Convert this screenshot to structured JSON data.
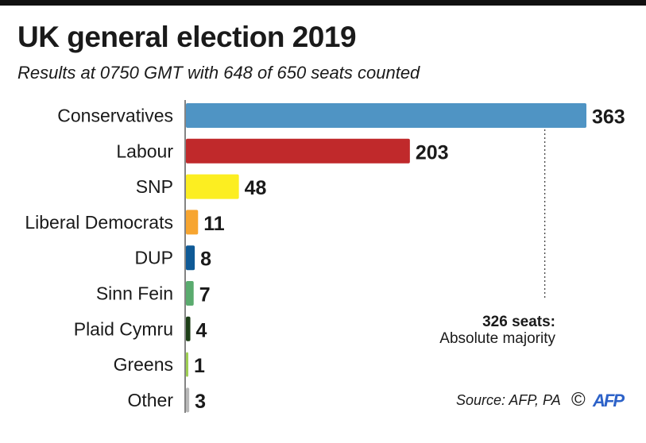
{
  "header": {
    "title": "UK general election 2019",
    "subtitle": "Results at 0750 GMT with 648 of 650 seats counted"
  },
  "chart_data": {
    "type": "bar",
    "orientation": "horizontal",
    "title": "UK general election 2019",
    "subtitle": "Results at 0750 GMT with 648 of 650 seats counted",
    "xlabel": "",
    "ylabel": "",
    "xlim": [
      0,
      363
    ],
    "categories": [
      "Conservatives",
      "Labour",
      "SNP",
      "Liberal Democrats",
      "DUP",
      "Sinn Fein",
      "Plaid Cymru",
      "Greens",
      "Other"
    ],
    "values": [
      363,
      203,
      48,
      11,
      8,
      7,
      4,
      1,
      3
    ],
    "colors": [
      "#4f94c4",
      "#c0292b",
      "#fcee21",
      "#f7a530",
      "#0f5a96",
      "#5aab6e",
      "#1d3f17",
      "#9fcf52",
      "#b8b8b8"
    ],
    "majority_line": {
      "value": 326,
      "label_bold": "326 seats:",
      "label": "Absolute majority"
    }
  },
  "footer": {
    "source": "Source: AFP, PA",
    "copyright": "©",
    "logo": "AFP"
  }
}
